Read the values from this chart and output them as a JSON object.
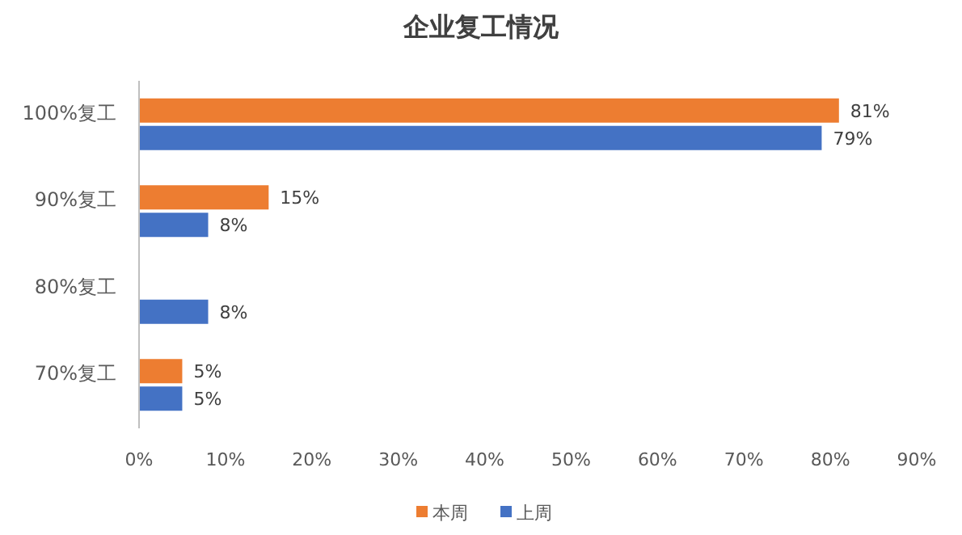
{
  "chart_data": {
    "type": "bar",
    "orientation": "horizontal",
    "title": "企业复工情况",
    "categories": [
      "100%复工",
      "90%复工",
      "80%复工",
      "70%复工"
    ],
    "series": [
      {
        "name": "本周",
        "color": "#ed7d31",
        "values": [
          81,
          15,
          null,
          5
        ],
        "value_labels": [
          "81%",
          "15%",
          null,
          "5%"
        ]
      },
      {
        "name": "上周",
        "color": "#4472c4",
        "values": [
          79,
          8,
          8,
          5
        ],
        "value_labels": [
          "79%",
          "8%",
          "8%",
          "5%"
        ]
      }
    ],
    "xlim": [
      0,
      90
    ],
    "xticks": [
      {
        "value": 0,
        "label": "0%"
      },
      {
        "value": 10,
        "label": "10%"
      },
      {
        "value": 20,
        "label": "20%"
      },
      {
        "value": 30,
        "label": "30%"
      },
      {
        "value": 40,
        "label": "40%"
      },
      {
        "value": 50,
        "label": "50%"
      },
      {
        "value": 60,
        "label": "60%"
      },
      {
        "value": 70,
        "label": "70%"
      },
      {
        "value": 80,
        "label": "80%"
      },
      {
        "value": 90,
        "label": "90%"
      }
    ],
    "legend": "bottom"
  }
}
